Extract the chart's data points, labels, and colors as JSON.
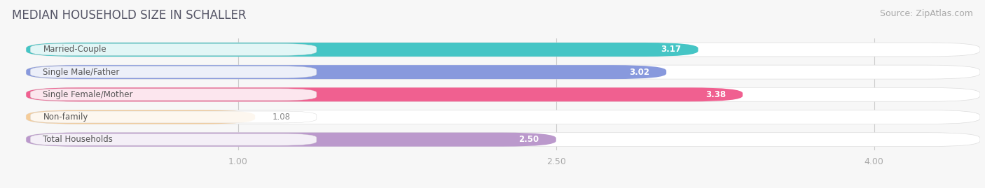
{
  "title": "MEDIAN HOUSEHOLD SIZE IN SCHALLER",
  "source": "Source: ZipAtlas.com",
  "categories": [
    "Married-Couple",
    "Single Male/Father",
    "Single Female/Mother",
    "Non-family",
    "Total Households"
  ],
  "values": [
    3.17,
    3.02,
    3.38,
    1.08,
    2.5
  ],
  "bar_colors": [
    "#45c5c5",
    "#8899dd",
    "#f06090",
    "#f5cc99",
    "#bb99cc"
  ],
  "xlim_data": [
    0,
    4.5
  ],
  "xticks": [
    1.0,
    2.5,
    4.0
  ],
  "xtick_labels": [
    "1.00",
    "2.50",
    "4.00"
  ],
  "title_fontsize": 12,
  "source_fontsize": 9,
  "label_fontsize": 8.5,
  "value_fontsize": 8.5,
  "background_color": "#f7f7f7",
  "bar_background_color": "#e8e8e8",
  "bar_label_bg": "#f0f0f0"
}
